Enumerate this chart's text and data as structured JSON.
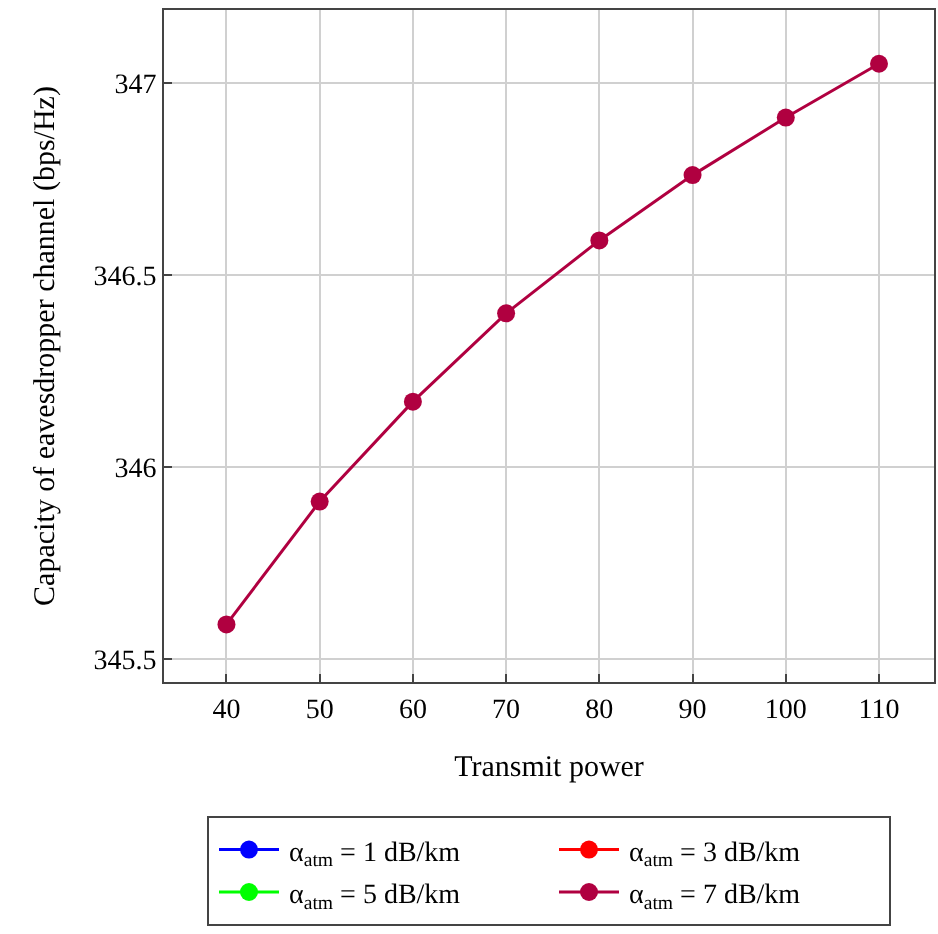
{
  "chart_data": {
    "type": "line",
    "xlabel": "Transmit power",
    "ylabel": "Capacity of eavesdropper channel (bps/Hz)",
    "x": [
      40,
      50,
      60,
      70,
      80,
      90,
      100,
      110
    ],
    "series": [
      {
        "name": "α$_{atm}$ = 1 dB/km",
        "color": "#0000ff",
        "values": [
          null,
          null,
          null,
          null,
          null,
          null,
          null,
          null
        ]
      },
      {
        "name": "α$_{atm}$ = 3 dB/km",
        "color": "#ff0000",
        "values": [
          null,
          null,
          null,
          null,
          null,
          null,
          null,
          null
        ]
      },
      {
        "name": "α$_{atm}$ = 5 dB/km",
        "color": "#00ff00",
        "values": [
          null,
          null,
          null,
          null,
          null,
          null,
          null,
          null
        ]
      },
      {
        "name": "α$_{atm}$ = 7 dB/km",
        "color": "#b00040",
        "values": [
          345.59,
          345.91,
          346.17,
          346.4,
          346.59,
          346.76,
          346.91,
          347.05
        ]
      }
    ],
    "xlim": [
      33.3,
      115.9
    ],
    "xticks": [
      40,
      50,
      60,
      70,
      80,
      90,
      100,
      110
    ],
    "ylim": [
      345.44,
      347.19
    ],
    "yticks": [
      345.5,
      346,
      346.5,
      347
    ],
    "grid": true,
    "legend": "bottom",
    "marker": "circle",
    "line_style": "solid"
  }
}
